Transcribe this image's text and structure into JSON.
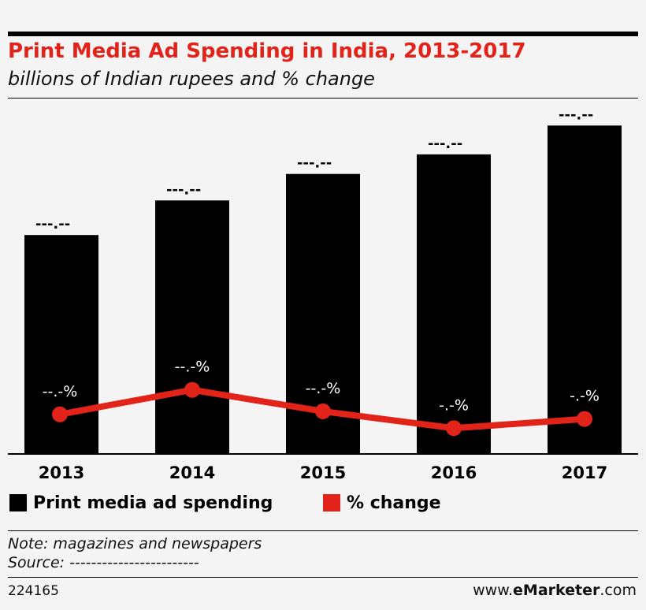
{
  "header": {
    "title": "Print Media Ad Spending in India, 2013-2017",
    "subtitle": "billions of Indian rupees and % change"
  },
  "legend": {
    "bars": "Print media ad spending",
    "line": "% change"
  },
  "footer": {
    "note": "Note: magazines and newspapers",
    "source": "Source: ------------------------",
    "chart_id": "224165",
    "brand_prefix": "www.",
    "brand_bold": "eMarketer",
    "brand_suffix": ".com"
  },
  "colors": {
    "bar": "#000000",
    "line": "#e2231a",
    "title": "#e2231a"
  },
  "chart_data": {
    "type": "bar",
    "categories": [
      "2013",
      "2014",
      "2015",
      "2016",
      "2017"
    ],
    "series": [
      {
        "name": "Print media ad spending",
        "type": "bar",
        "values": [
          190,
          220,
          243,
          260,
          285
        ],
        "labels": [
          "---.--",
          "---.--",
          "---.--",
          "---.--",
          "---.--"
        ]
      },
      {
        "name": "% change",
        "type": "line",
        "values": [
          8.9,
          10.5,
          9.1,
          8.0,
          8.6
        ],
        "labels": [
          "--.-%",
          "--.-%",
          "--.-%",
          "-.-%",
          "-.-%"
        ]
      }
    ],
    "ylim": [
      0,
      290
    ],
    "grid": false,
    "legend_position": "bottom"
  }
}
